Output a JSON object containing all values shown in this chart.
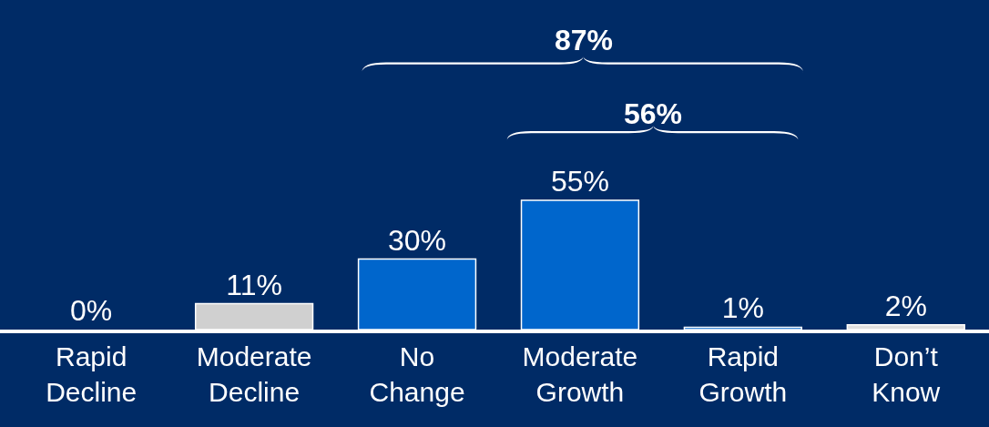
{
  "chart_data": {
    "type": "bar",
    "categories": [
      "Rapid Decline",
      "Moderate Decline",
      "No Change",
      "Moderate Growth",
      "Rapid Growth",
      "Don’t Know"
    ],
    "values": [
      0,
      11,
      30,
      55,
      1,
      2
    ],
    "colors": [
      "#0066cc",
      "#d0d0d0",
      "#0066cc",
      "#0066cc",
      "#0066cc",
      "#e0e0e0"
    ],
    "value_labels": [
      "0%",
      "11%",
      "30%",
      "55%",
      "1%",
      "2%"
    ],
    "annotations": [
      "87%",
      "56%"
    ],
    "grid": false,
    "legend": false
  }
}
